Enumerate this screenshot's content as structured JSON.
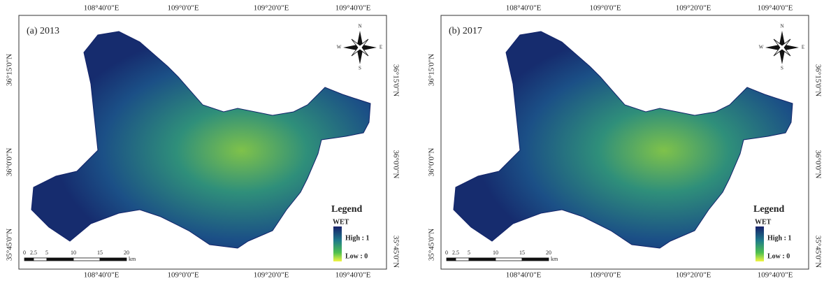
{
  "panels": [
    {
      "title": "(a) 2013",
      "top_labels": [
        "108°40'0\"E",
        "109°0'0\"E",
        "109°20'0\"E",
        "109°40'0\"E"
      ],
      "bottom_labels": [
        "108°40'0\"E",
        "109°0'0\"E",
        "109°20'0\"E",
        "109°40'0\"E"
      ],
      "left_labels": [
        "36°15'0\"N",
        "36°0'0\"N",
        "35°45'0\"N"
      ],
      "right_labels": [
        "36°15'0\"N",
        "36°0'0\"N",
        "35°45'0\"N"
      ],
      "compass": {
        "n": "N",
        "s": "S",
        "e": "E",
        "w": "W"
      },
      "legend": {
        "title": "Legend",
        "field": "WET",
        "high": "High : 1",
        "low": "Low : 0"
      },
      "scale": {
        "ticks": [
          0,
          2.5,
          5,
          10,
          15,
          20
        ],
        "unit": "km"
      }
    },
    {
      "title": "(b) 2017",
      "top_labels": [
        "108°40'0\"E",
        "109°0'0\"E",
        "109°20'0\"E",
        "109°40'0\"E"
      ],
      "bottom_labels": [
        "108°40'0\"E",
        "109°0'0\"E",
        "109°20'0\"E",
        "109°40'0\"E"
      ],
      "left_labels": [
        "36°15'0\"N",
        "36°0'0\"N",
        "35°45'0\"N"
      ],
      "right_labels": [
        "36°15'0\"N",
        "36°0'0\"N",
        "35°45'0\"N"
      ],
      "compass": {
        "n": "N",
        "s": "S",
        "e": "E",
        "w": "W"
      },
      "legend": {
        "title": "Legend",
        "field": "WET",
        "high": "High : 1",
        "low": "Low : 0"
      },
      "scale": {
        "ticks": [
          0,
          2.5,
          5,
          10,
          15,
          20
        ],
        "unit": "km"
      }
    }
  ]
}
